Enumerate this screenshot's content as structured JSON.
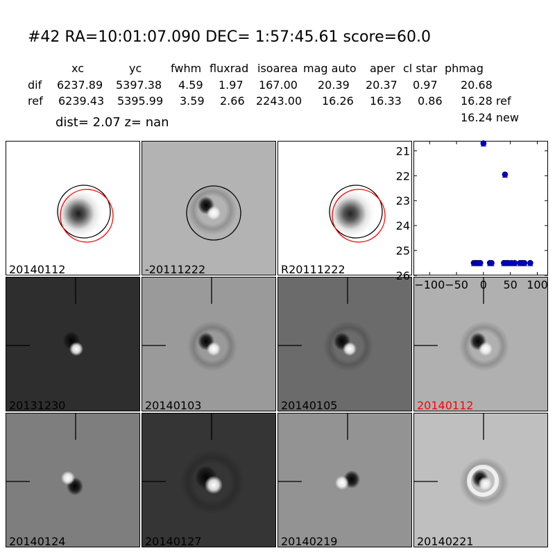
{
  "header": {
    "title": "#42   RA=10:01:07.090 DEC= 1:57:45.61      score=60.0",
    "columns": [
      "xc",
      "yc",
      "fwhm",
      "fluxrad",
      "isoarea",
      "mag auto",
      "aper",
      "cl star",
      "phmag"
    ],
    "rows": [
      {
        "label": "dif",
        "values": [
          "6237.89",
          "5397.38",
          "4.59",
          "1.97",
          "167.00",
          "20.39",
          "20.37",
          "0.97",
          "20.68"
        ]
      },
      {
        "label": "ref",
        "values": [
          "6239.43",
          "5395.99",
          "3.59",
          "2.66",
          "2243.00",
          "16.26",
          "16.33",
          "0.86",
          "16.28 ref"
        ]
      }
    ],
    "phmag_new": "16.24 new",
    "dist_line": "dist=  2.07      z=   nan"
  },
  "top_panels": [
    {
      "label": "20140112",
      "bg": "#ffffff",
      "dark": "#1a1a1a",
      "type": "psf",
      "circles": true
    },
    {
      "label": "-20111222",
      "bg": "#b3b3b3",
      "type": "dipole",
      "circles": "black"
    },
    {
      "label": "R20111222",
      "bg": "#ffffff",
      "dark": "#222222",
      "type": "psf",
      "circles": true
    }
  ],
  "grid_panels": [
    {
      "label": "20131230",
      "bg": "#2e2e2e",
      "type": "dipole_v",
      "label_color": "#000000"
    },
    {
      "label": "20140103",
      "bg": "#9a9a9a",
      "type": "dipole",
      "label_color": "#000000"
    },
    {
      "label": "20140105",
      "bg": "#6b6b6b",
      "type": "dipole_ring",
      "label_color": "#000000"
    },
    {
      "label": "20140112",
      "bg": "#b0b0b0",
      "type": "dipole",
      "label_color": "#ff0000"
    },
    {
      "label": "20140124",
      "bg": "#7e7e7e",
      "type": "swirl",
      "label_color": "#000000"
    },
    {
      "label": "20140127",
      "bg": "#353535",
      "type": "dipole_big",
      "label_color": "#000000"
    },
    {
      "label": "20140219",
      "bg": "#939393",
      "type": "dipole_r",
      "label_color": "#000000"
    },
    {
      "label": "20140221",
      "bg": "#bfbfbf",
      "type": "ring",
      "label_color": "#000000"
    }
  ],
  "chart_data": {
    "type": "scatter",
    "xlim": [
      -130,
      120
    ],
    "ylim": [
      26,
      20.6
    ],
    "xticks": [
      "−100",
      "−50",
      "0",
      "50",
      "100"
    ],
    "xtick_values": [
      -100,
      -50,
      0,
      50,
      100
    ],
    "yticks": [
      "21",
      "22",
      "23",
      "24",
      "25",
      "26"
    ],
    "ytick_values": [
      21,
      22,
      23,
      24,
      25,
      26
    ],
    "color": "#0000cc",
    "points": [
      {
        "x": 0,
        "y": 20.7
      },
      {
        "x": 40,
        "y": 21.95
      },
      {
        "x": -18,
        "y": 25.5
      },
      {
        "x": -15,
        "y": 25.5
      },
      {
        "x": -12,
        "y": 25.5
      },
      {
        "x": -9,
        "y": 25.5
      },
      {
        "x": -6,
        "y": 25.5
      },
      {
        "x": 12,
        "y": 25.5
      },
      {
        "x": 15,
        "y": 25.5
      },
      {
        "x": 38,
        "y": 25.5
      },
      {
        "x": 42,
        "y": 25.5
      },
      {
        "x": 46,
        "y": 25.5
      },
      {
        "x": 52,
        "y": 25.5
      },
      {
        "x": 58,
        "y": 25.5
      },
      {
        "x": 68,
        "y": 25.5
      },
      {
        "x": 72,
        "y": 25.5
      },
      {
        "x": 76,
        "y": 25.5
      },
      {
        "x": 87,
        "y": 25.5
      }
    ]
  }
}
